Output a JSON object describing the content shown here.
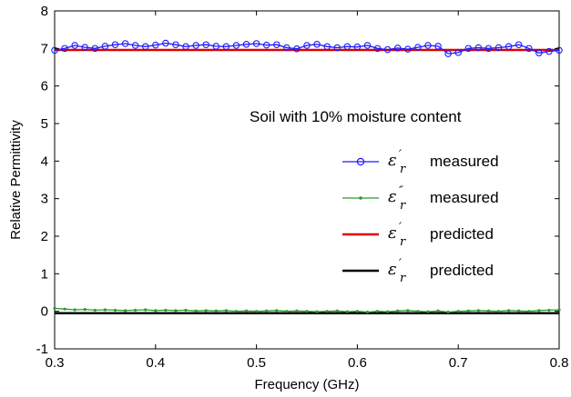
{
  "chart_data": {
    "type": "line",
    "title": "",
    "xlabel": "Frequency (GHz)",
    "ylabel": "Relative Permittivity",
    "xlim": [
      0.3,
      0.8
    ],
    "ylim": [
      -1,
      8
    ],
    "xticks": [
      "0.3",
      "0.4",
      "0.5",
      "0.6",
      "0.7",
      "0.8"
    ],
    "yticks": [
      "-1",
      "0",
      "1",
      "2",
      "3",
      "4",
      "5",
      "6",
      "7",
      "8"
    ],
    "grid": false,
    "annotation": "Soil with 10% moisture content",
    "legend_position": "right",
    "x": [
      0.3,
      0.31,
      0.32,
      0.33,
      0.34,
      0.35,
      0.36,
      0.37,
      0.38,
      0.39,
      0.4,
      0.41,
      0.42,
      0.43,
      0.44,
      0.45,
      0.46,
      0.47,
      0.48,
      0.49,
      0.5,
      0.51,
      0.52,
      0.53,
      0.54,
      0.55,
      0.56,
      0.57,
      0.58,
      0.59,
      0.6,
      0.61,
      0.62,
      0.63,
      0.64,
      0.65,
      0.66,
      0.67,
      0.68,
      0.69,
      0.7,
      0.71,
      0.72,
      0.73,
      0.74,
      0.75,
      0.76,
      0.77,
      0.78,
      0.79,
      0.8
    ],
    "series": [
      {
        "name": "measured",
        "symbol": "ε",
        "prime": "′",
        "subscript": "r",
        "color": "#1a1aff",
        "marker": "circle",
        "values": [
          6.95,
          7.0,
          7.08,
          7.03,
          7.0,
          7.06,
          7.1,
          7.13,
          7.08,
          7.05,
          7.09,
          7.14,
          7.1,
          7.05,
          7.08,
          7.1,
          7.06,
          7.05,
          7.08,
          7.11,
          7.13,
          7.09,
          7.1,
          7.02,
          6.99,
          7.08,
          7.11,
          7.05,
          7.02,
          7.05,
          7.04,
          7.08,
          7.0,
          6.97,
          7.01,
          6.98,
          7.03,
          7.08,
          7.06,
          6.86,
          6.89,
          7.0,
          7.02,
          7.0,
          7.02,
          7.05,
          7.1,
          7.0,
          6.88,
          6.92,
          6.95
        ]
      },
      {
        "name": "measured",
        "symbol": "ε",
        "prime": "″",
        "subscript": "r",
        "color": "#2e9a2e",
        "marker": "dot",
        "values": [
          0.08,
          0.06,
          0.04,
          0.05,
          0.03,
          0.04,
          0.03,
          0.02,
          0.03,
          0.04,
          0.02,
          0.03,
          0.02,
          0.03,
          0.01,
          0.02,
          0.01,
          0.02,
          0.0,
          0.01,
          0.0,
          0.01,
          0.02,
          0.0,
          0.01,
          0.0,
          -0.01,
          0.0,
          0.01,
          -0.01,
          0.0,
          -0.02,
          0.0,
          -0.01,
          0.01,
          0.02,
          0.0,
          -0.01,
          0.01,
          -0.02,
          0.0,
          0.01,
          0.02,
          0.01,
          0.0,
          0.02,
          0.01,
          0.0,
          0.02,
          0.03,
          0.04
        ]
      },
      {
        "name": "predicted",
        "symbol": "ε",
        "prime": "′",
        "subscript": "r",
        "color": "#e00000",
        "marker": "none",
        "values": [
          6.96,
          6.96,
          6.96,
          6.96,
          6.96,
          6.96,
          6.96,
          6.96,
          6.96,
          6.96,
          6.96,
          6.96,
          6.96,
          6.96,
          6.96,
          6.96,
          6.96,
          6.96,
          6.96,
          6.96,
          6.96,
          6.96,
          6.96,
          6.96,
          6.96,
          6.96,
          6.96,
          6.96,
          6.96,
          6.96,
          6.96,
          6.96,
          6.96,
          6.96,
          6.96,
          6.96,
          6.96,
          6.96,
          6.96,
          6.96,
          6.96,
          6.96,
          6.96,
          6.96,
          6.96,
          6.96,
          6.96,
          6.96,
          6.96,
          6.96,
          6.96
        ]
      },
      {
        "name": "predicted",
        "symbol": "ε",
        "prime": "′",
        "subscript": "r",
        "color": "#000000",
        "marker": "none",
        "values": [
          -0.05,
          -0.05,
          -0.05,
          -0.05,
          -0.05,
          -0.05,
          -0.05,
          -0.05,
          -0.05,
          -0.05,
          -0.05,
          -0.05,
          -0.05,
          -0.05,
          -0.05,
          -0.05,
          -0.05,
          -0.05,
          -0.05,
          -0.05,
          -0.05,
          -0.05,
          -0.05,
          -0.05,
          -0.05,
          -0.05,
          -0.05,
          -0.05,
          -0.05,
          -0.05,
          -0.05,
          -0.05,
          -0.05,
          -0.05,
          -0.05,
          -0.05,
          -0.05,
          -0.05,
          -0.05,
          -0.05,
          -0.05,
          -0.05,
          -0.05,
          -0.05,
          -0.05,
          -0.05,
          -0.05,
          -0.05,
          -0.05,
          -0.05,
          -0.05
        ]
      }
    ]
  }
}
